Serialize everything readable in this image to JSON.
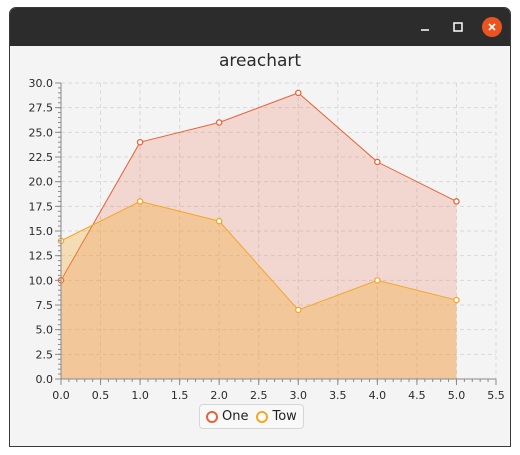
{
  "window": {
    "controls": [
      "minimize-icon",
      "maximize-icon",
      "close-icon"
    ],
    "close_color": "#e95420"
  },
  "chart_data": {
    "type": "area",
    "title": "areachart",
    "x": [
      0,
      1,
      2,
      3,
      4,
      5
    ],
    "series": [
      {
        "name": "One",
        "values": [
          10,
          24,
          26,
          29,
          22,
          18
        ],
        "color": "#e8633a"
      },
      {
        "name": "Tow",
        "values": [
          14,
          18,
          16,
          7,
          10,
          8
        ],
        "color": "#f5a623"
      }
    ],
    "xlim": [
      0,
      5.5
    ],
    "ylim": [
      0,
      30
    ],
    "x_ticks": [
      "0.0",
      "0.5",
      "1.0",
      "1.5",
      "2.0",
      "2.5",
      "3.0",
      "3.5",
      "4.0",
      "4.5",
      "5.0",
      "5.5"
    ],
    "y_ticks": [
      "0.0",
      "2.5",
      "5.0",
      "7.5",
      "10.0",
      "12.5",
      "15.0",
      "17.5",
      "20.0",
      "22.5",
      "25.0",
      "27.5",
      "30.0"
    ],
    "grid": true,
    "legend": "bottom-center"
  }
}
